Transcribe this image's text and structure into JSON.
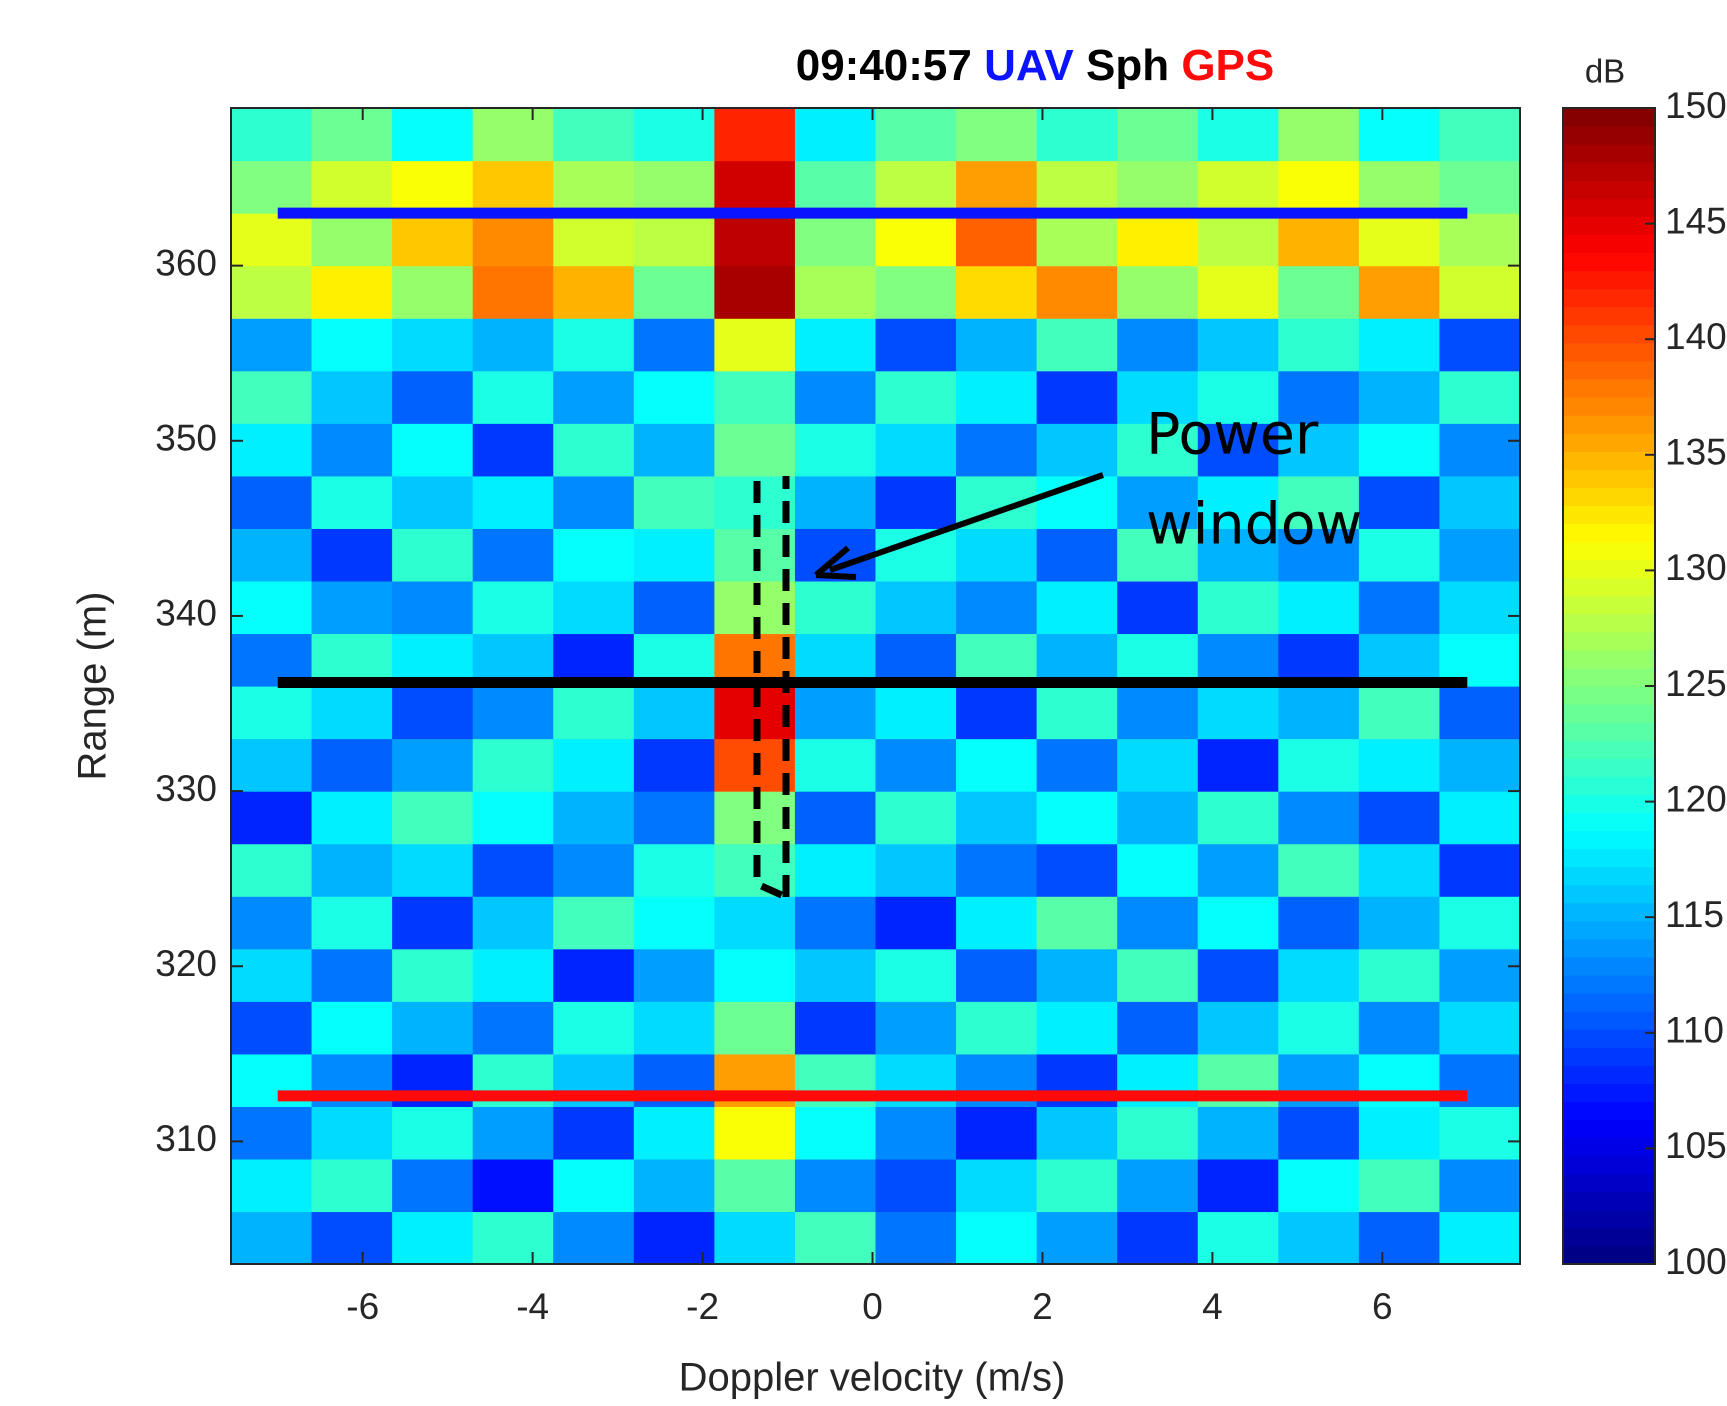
{
  "chart_data": {
    "type": "heatmap",
    "title_time": "09:40:57",
    "xlabel": "Doppler velocity (m/s)",
    "ylabel": "Range (m)",
    "xlim": [
      -7.55,
      7.62
    ],
    "ylim": [
      303,
      369
    ],
    "xticks": [
      -6,
      -4,
      -2,
      0,
      2,
      4,
      6
    ],
    "yticks": [
      310,
      320,
      330,
      340,
      350,
      360
    ],
    "clim": [
      100,
      150
    ],
    "colorbar_label": "dB",
    "cticks": [
      100,
      105,
      110,
      115,
      120,
      125,
      130,
      135,
      140,
      145,
      150
    ],
    "colormap": "jet",
    "z": [
      [
        115,
        110,
        118,
        121,
        113,
        108,
        117,
        122,
        112,
        119,
        114,
        109,
        120,
        116,
        111,
        118
      ],
      [
        118,
        121,
        112,
        107,
        119,
        115,
        123,
        113,
        110,
        117,
        121,
        114,
        108,
        119,
        122,
        113
      ],
      [
        112,
        117,
        120,
        114,
        109,
        118,
        131,
        119,
        113,
        108,
        116,
        121,
        115,
        110,
        118,
        120
      ],
      [
        119,
        113,
        108,
        121,
        116,
        111,
        136,
        122,
        117,
        113,
        109,
        118,
        123,
        114,
        119,
        112
      ],
      [
        110,
        119,
        115,
        112,
        120,
        117,
        124,
        109,
        114,
        121,
        118,
        111,
        116,
        120,
        113,
        117
      ],
      [
        117,
        112,
        121,
        118,
        108,
        114,
        119,
        116,
        120,
        111,
        115,
        122,
        110,
        117,
        121,
        114
      ],
      [
        113,
        120,
        109,
        116,
        122,
        119,
        117,
        112,
        108,
        118,
        123,
        113,
        119,
        111,
        115,
        120
      ],
      [
        121,
        115,
        117,
        110,
        113,
        120,
        122,
        118,
        116,
        112,
        110,
        119,
        114,
        122,
        117,
        109
      ],
      [
        108,
        118,
        122,
        119,
        115,
        112,
        125,
        111,
        121,
        116,
        119,
        115,
        121,
        113,
        110,
        118
      ],
      [
        116,
        111,
        114,
        121,
        118,
        109,
        140,
        120,
        113,
        119,
        112,
        117,
        108,
        120,
        118,
        115
      ],
      [
        120,
        117,
        110,
        113,
        121,
        116,
        145,
        114,
        118,
        109,
        121,
        113,
        117,
        115,
        122,
        111
      ],
      [
        112,
        121,
        118,
        116,
        108,
        120,
        138,
        117,
        111,
        122,
        115,
        120,
        113,
        109,
        116,
        119
      ],
      [
        119,
        114,
        113,
        120,
        117,
        111,
        126,
        121,
        116,
        113,
        118,
        109,
        121,
        118,
        112,
        117
      ],
      [
        115,
        109,
        121,
        112,
        119,
        118,
        123,
        110,
        120,
        117,
        111,
        122,
        115,
        113,
        120,
        114
      ],
      [
        111,
        120,
        116,
        118,
        113,
        122,
        121,
        115,
        109,
        121,
        119,
        114,
        118,
        122,
        110,
        116
      ],
      [
        118,
        113,
        119,
        109,
        121,
        115,
        124,
        120,
        117,
        112,
        116,
        121,
        110,
        116,
        119,
        113
      ],
      [
        122,
        116,
        111,
        120,
        114,
        119,
        122,
        113,
        121,
        118,
        109,
        117,
        120,
        112,
        115,
        121
      ],
      [
        114,
        119,
        117,
        115,
        120,
        112,
        130,
        118,
        110,
        115,
        122,
        113,
        116,
        121,
        118,
        110
      ],
      [
        128,
        132,
        126,
        138,
        135,
        124,
        148,
        127,
        125,
        133,
        137,
        126,
        130,
        124,
        136,
        129
      ],
      [
        130,
        126,
        134,
        137,
        129,
        128,
        147,
        125,
        131,
        139,
        127,
        132,
        128,
        135,
        130,
        127
      ],
      [
        125,
        129,
        131,
        134,
        127,
        126,
        146,
        123,
        128,
        136,
        128,
        126,
        129,
        131,
        126,
        124
      ],
      [
        121,
        124,
        119,
        126,
        122,
        120,
        142,
        118,
        123,
        125,
        121,
        124,
        120,
        126,
        119,
        122
      ]
    ],
    "lines": [
      {
        "name": "UAV",
        "color": "#0a14ff",
        "x": [
          -7,
          7
        ],
        "y": 363
      },
      {
        "name": "Sph",
        "color": "#000000",
        "x": [
          -7,
          7
        ],
        "y": 336.2
      },
      {
        "name": "GPS",
        "color": "#ff0a0a",
        "x": [
          -7,
          7
        ],
        "y": 312.6
      }
    ],
    "annotation": [
      "Power",
      "window"
    ]
  }
}
